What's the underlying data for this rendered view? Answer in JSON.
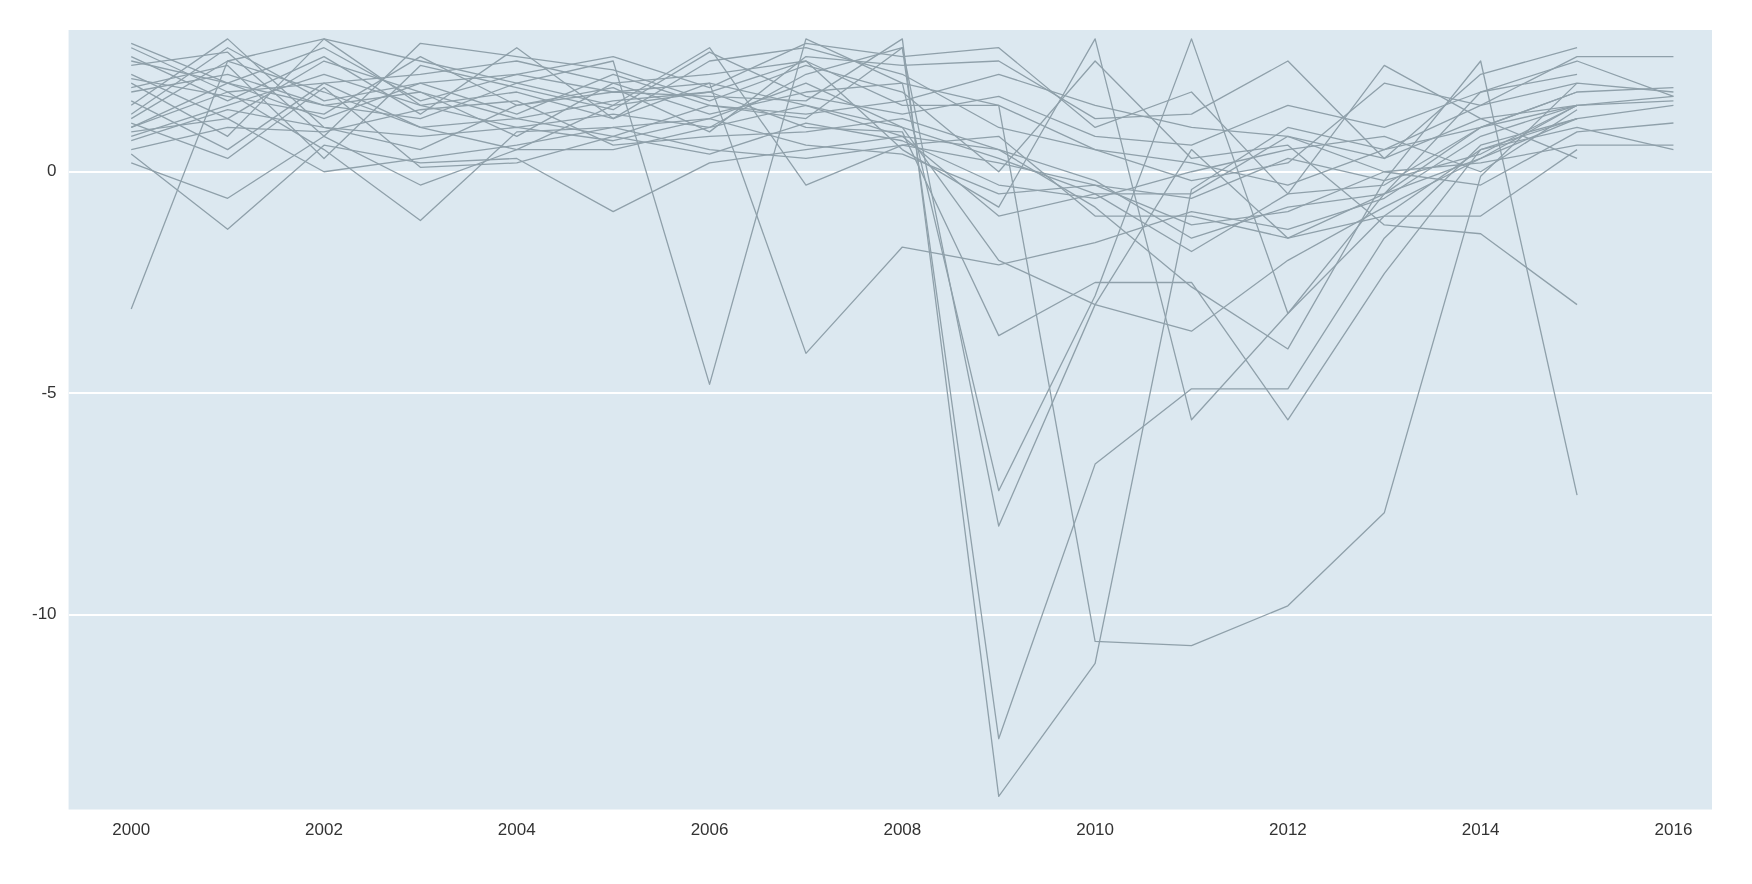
{
  "chart_data": {
    "type": "line",
    "x": [
      2000,
      2001,
      2002,
      2003,
      2004,
      2005,
      2006,
      2007,
      2008,
      2009,
      2010,
      2011,
      2012,
      2013,
      2014,
      2015,
      2016
    ],
    "xlim": [
      1999.35,
      2016.4
    ],
    "xticks": [
      2000,
      2002,
      2004,
      2006,
      2008,
      2010,
      2012,
      2014,
      2016
    ],
    "ylim": [
      -14.4,
      3.2
    ],
    "yticks": [
      -10,
      -5,
      0
    ],
    "grid": "y",
    "legend": false,
    "marker": "none",
    "line_style": "solid",
    "series": [
      {
        "color": "#8fa0aa",
        "values": [
          -3.1,
          2.5,
          3.0,
          1.5,
          1.8,
          1.2,
          2.0,
          1.5,
          0.8,
          -1.0,
          -0.5,
          -1.8,
          -0.5,
          -0.3,
          1.0,
          1.8,
          1.9
        ]
      },
      {
        "color": "#8fa0aa",
        "values": [
          0.2,
          -0.6,
          0.8,
          -0.3,
          0.5,
          1.5,
          2.8,
          -0.3,
          0.6,
          0.2,
          -0.3,
          -0.6,
          0.3,
          -0.2,
          0.4,
          1.5,
          1.7
        ]
      },
      {
        "color": "#8fa0aa",
        "values": [
          0.4,
          -1.3,
          0.6,
          0.2,
          0.3,
          -0.9,
          0.2,
          0.5,
          0.8,
          0.5,
          -0.2,
          -1.5,
          -0.8,
          -0.5,
          0.3,
          1.2,
          1.5
        ]
      },
      {
        "color": "#8fa0aa",
        "values": [
          1.0,
          1.8,
          0.5,
          -1.1,
          0.9,
          1.0,
          1.2,
          2.0,
          1.0,
          0.3,
          -0.5,
          -0.5,
          0.8,
          0.3,
          1.2,
          1.5,
          null
        ]
      },
      {
        "color": "#8fa0aa",
        "values": [
          2.0,
          0.8,
          3.0,
          2.5,
          2.0,
          2.5,
          -4.8,
          3.0,
          2.0,
          1.5,
          0.5,
          0.2,
          -0.3,
          0.5,
          1.0,
          1.8,
          null
        ]
      },
      {
        "color": "#8fa0aa",
        "values": [
          2.5,
          2.0,
          1.2,
          2.0,
          2.2,
          1.8,
          2.0,
          -4.1,
          -1.7,
          -2.1,
          -1.6,
          -0.9,
          -1.3,
          -0.6,
          0.8,
          1.5,
          null
        ]
      },
      {
        "color": "#8fa0aa",
        "values": [
          1.5,
          3.0,
          1.0,
          0.5,
          1.5,
          1.8,
          1.7,
          1.6,
          3.0,
          -14.1,
          -11.1,
          -0.4,
          1.0,
          0.5,
          1.5,
          2.0,
          1.8
        ]
      },
      {
        "color": "#8fa0aa",
        "values": [
          1.2,
          2.5,
          1.8,
          1.0,
          1.2,
          0.8,
          1.5,
          1.2,
          2.8,
          -12.8,
          -6.6,
          -4.9,
          -4.9,
          -1.5,
          0.6,
          1.2,
          null
        ]
      },
      {
        "color": "#8fa0aa",
        "values": [
          0.8,
          1.5,
          2.2,
          1.5,
          1.0,
          1.3,
          1.0,
          2.2,
          2.8,
          -8.0,
          -3.0,
          0.5,
          -1.5,
          -1.0,
          0.5,
          1.0,
          0.5
        ]
      },
      {
        "color": "#8fa0aa",
        "values": [
          2.2,
          1.2,
          2.5,
          1.8,
          0.8,
          2.0,
          1.3,
          1.8,
          2.0,
          -7.2,
          -2.8,
          3.0,
          -3.2,
          -1.0,
          -1.0,
          0.5,
          null
        ]
      },
      {
        "color": "#8fa0aa",
        "values": [
          1.8,
          2.2,
          1.5,
          1.2,
          2.0,
          1.5,
          1.8,
          2.5,
          1.5,
          1.5,
          -10.6,
          -10.7,
          -9.8,
          -7.7,
          -0.1,
          2.0,
          null
        ]
      },
      {
        "color": "#8fa0aa",
        "values": [
          2.8,
          1.8,
          2.0,
          2.2,
          2.5,
          2.0,
          2.2,
          2.5,
          0.5,
          -0.8,
          3.0,
          -5.6,
          -3.2,
          -0.5,
          1.0,
          1.5,
          null
        ]
      },
      {
        "color": "#8fa0aa",
        "values": [
          1.0,
          2.0,
          1.5,
          1.8,
          1.2,
          1.6,
          1.8,
          1.0,
          0.9,
          -3.7,
          -2.5,
          -2.5,
          -5.6,
          -2.3,
          0.5,
          1.2,
          null
        ]
      },
      {
        "color": "#8fa0aa",
        "values": [
          0.5,
          1.0,
          0.9,
          1.4,
          1.6,
          0.6,
          0.8,
          0.9,
          1.2,
          0.5,
          -0.8,
          -2.6,
          -4.0,
          -0.2,
          2.5,
          -7.3,
          null
        ]
      },
      {
        "color": "#8fa0aa",
        "values": [
          2.4,
          2.7,
          0.8,
          2.9,
          2.6,
          2.3,
          1.6,
          2.4,
          1.8,
          0.0,
          2.5,
          0.3,
          0.6,
          -1.2,
          -1.4,
          -3.0,
          null
        ]
      },
      {
        "color": "#8fa0aa",
        "values": [
          1.6,
          0.5,
          2.0,
          1.0,
          0.5,
          0.5,
          1.0,
          1.5,
          1.0,
          -2.0,
          -3.0,
          -3.6,
          -2.0,
          -0.8,
          0.3,
          1.5,
          1.6
        ]
      },
      {
        "color": "#8fa0aa",
        "values": [
          0.9,
          1.2,
          0.0,
          0.3,
          0.6,
          1.0,
          0.5,
          0.3,
          0.6,
          0.8,
          -1.0,
          -1.0,
          -1.5,
          -0.5,
          1.8,
          2.5,
          1.7
        ]
      },
      {
        "color": "#8fa0aa",
        "values": [
          1.3,
          2.8,
          1.6,
          2.0,
          1.3,
          2.2,
          1.5,
          1.3,
          1.6,
          2.2,
          1.5,
          1.0,
          0.8,
          0.0,
          0.2,
          0.6,
          0.6
        ]
      },
      {
        "color": "#8fa0aa",
        "values": [
          2.6,
          1.6,
          2.6,
          1.3,
          2.8,
          1.2,
          2.5,
          2.8,
          2.2,
          1.0,
          0.5,
          -0.2,
          0.2,
          2.0,
          1.5,
          2.6,
          2.6
        ]
      },
      {
        "color": "#8fa0aa",
        "values": [
          0.7,
          1.4,
          1.0,
          0.8,
          1.0,
          0.7,
          1.2,
          0.6,
          0.4,
          -0.5,
          -0.3,
          -1.2,
          -0.9,
          0.0,
          -0.3,
          0.9,
          1.1
        ]
      },
      {
        "color": "#8fa0aa",
        "values": [
          1.9,
          2.4,
          0.3,
          2.4,
          1.9,
          1.4,
          2.7,
          1.7,
          1.3,
          1.7,
          0.8,
          0.6,
          1.5,
          1.0,
          1.8,
          2.2,
          null
        ]
      },
      {
        "color": "#8fa0aa",
        "values": [
          2.9,
          2.0,
          2.8,
          1.6,
          2.2,
          2.6,
          1.9,
          2.9,
          2.6,
          2.8,
          1.0,
          1.8,
          -0.5,
          2.4,
          1.2,
          0.3,
          null
        ]
      },
      {
        "color": "#8fa0aa",
        "values": [
          1.1,
          0.3,
          1.9,
          0.1,
          0.2,
          0.8,
          0.4,
          1.1,
          0.7,
          -0.3,
          -0.6,
          0.0,
          0.5,
          0.8,
          0.0,
          1.4,
          null
        ]
      },
      {
        "color": "#8fa0aa",
        "values": [
          2.1,
          1.7,
          1.3,
          2.6,
          1.5,
          1.9,
          0.9,
          2.6,
          2.4,
          2.5,
          1.2,
          1.3,
          2.5,
          0.3,
          2.2,
          2.8,
          null
        ]
      }
    ]
  }
}
